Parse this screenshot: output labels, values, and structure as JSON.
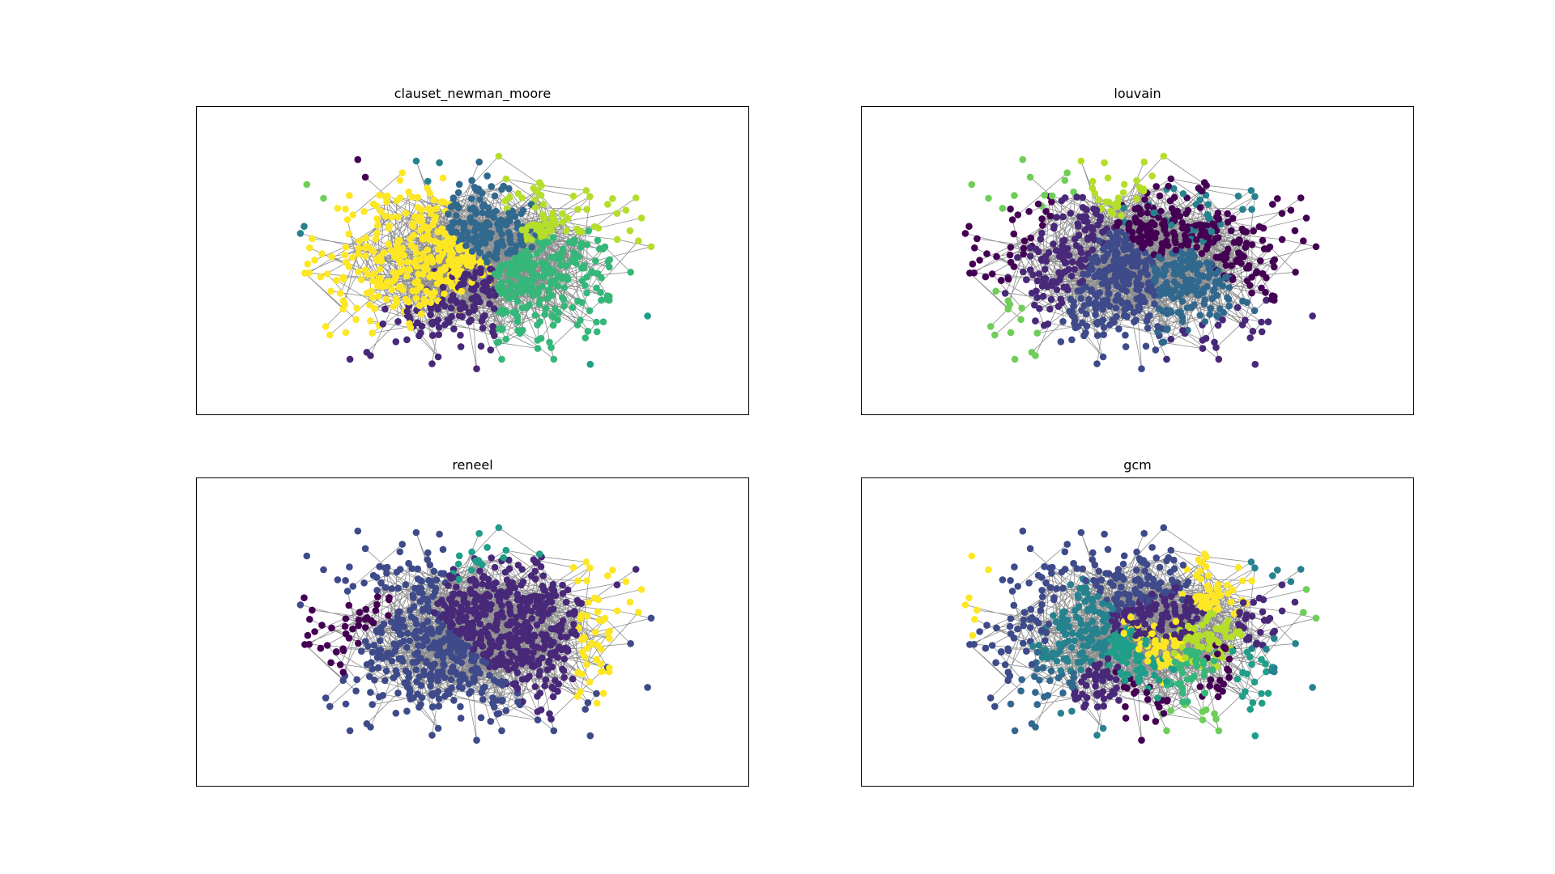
{
  "figure": {
    "panels": [
      {
        "id": "p1",
        "title": "clauset_newman_moore"
      },
      {
        "id": "p2",
        "title": "louvain"
      },
      {
        "id": "p3",
        "title": "reneel"
      },
      {
        "id": "p4",
        "title": "gcm"
      }
    ],
    "colormap": [
      "#440154",
      "#482878",
      "#3e4a89",
      "#31688e",
      "#26828e",
      "#1f9e89",
      "#35b779",
      "#6ece58",
      "#b5de2b",
      "#fde725"
    ],
    "edge_color": "#000000",
    "node_shape": "circle"
  }
}
